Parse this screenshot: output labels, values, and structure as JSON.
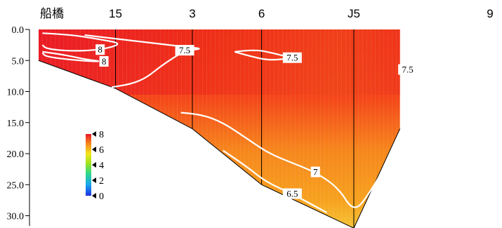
{
  "chart_data": {
    "type": "heatmap",
    "stations": [
      {
        "name": "船橋",
        "x": 0.0,
        "bottom_depth": 5.0
      },
      {
        "name": "15",
        "x": 1.0,
        "bottom_depth": 9.5
      },
      {
        "name": "3",
        "x": 2.0,
        "bottom_depth": 16.0
      },
      {
        "name": "6",
        "x": 2.9,
        "bottom_depth": 25.0
      },
      {
        "name": "J5",
        "x": 4.1,
        "bottom_depth": 32.0
      },
      {
        "name": "9",
        "x": 4.7,
        "bottom_depth": 16.0
      }
    ],
    "y_axis": {
      "ticks": [
        "0.0",
        "5.0",
        "10.0",
        "15.0",
        "20.0",
        "25.0",
        "30.0"
      ],
      "ylim": [
        0,
        32
      ]
    },
    "colorbar": {
      "labels": [
        "8",
        "6",
        "4",
        "2",
        "0"
      ],
      "range": [
        0,
        8
      ]
    },
    "contours": [
      {
        "label": "8",
        "points": [
          [
            0.05,
            0.6
          ],
          [
            0.4,
            0.8
          ],
          [
            0.8,
            1.6
          ],
          [
            1.1,
            2.3
          ],
          [
            0.8,
            3.3
          ],
          [
            0.4,
            3.5
          ],
          [
            0.1,
            3.1
          ],
          [
            0.05,
            2.5
          ]
        ]
      },
      {
        "label": "8",
        "points": [
          [
            0.05,
            3.6
          ],
          [
            0.3,
            4.0
          ],
          [
            0.6,
            4.8
          ],
          [
            0.85,
            5.2
          ],
          [
            0.5,
            5.0
          ],
          [
            0.1,
            4.4
          ],
          [
            0.05,
            3.8
          ]
        ]
      },
      {
        "label": "7.5",
        "points": [
          [
            0.6,
            0.9
          ],
          [
            1.0,
            1.5
          ],
          [
            1.5,
            2.2
          ],
          [
            1.9,
            2.8
          ],
          [
            2.15,
            3.1
          ],
          [
            1.9,
            3.4
          ],
          [
            1.6,
            5.8
          ],
          [
            1.4,
            7.8
          ],
          [
            1.2,
            8.8
          ],
          [
            0.95,
            9.3
          ]
        ]
      },
      {
        "label": "7.5",
        "points": [
          [
            2.55,
            3.6
          ],
          [
            2.8,
            3.2
          ],
          [
            3.05,
            3.8
          ],
          [
            3.3,
            4.6
          ],
          [
            3.0,
            5.0
          ],
          [
            2.75,
            4.3
          ],
          [
            2.55,
            3.6
          ]
        ]
      },
      {
        "label": "7.5",
        "points": [
          [
            4.75,
            2.8
          ],
          [
            4.95,
            2.4
          ],
          [
            4.95,
            7.4
          ],
          [
            4.8,
            6.5
          ],
          [
            4.7,
            5.3
          ],
          [
            4.75,
            2.8
          ]
        ]
      },
      {
        "label": "7",
        "points": [
          [
            1.85,
            13.4
          ],
          [
            2.1,
            13.6
          ],
          [
            2.4,
            15.0
          ],
          [
            2.7,
            17.5
          ],
          [
            3.0,
            20.0
          ],
          [
            3.3,
            21.5
          ],
          [
            3.6,
            23.0
          ],
          [
            3.9,
            25.5
          ],
          [
            4.1,
            29.5
          ],
          [
            4.3,
            26.5
          ],
          [
            4.6,
            20.0
          ],
          [
            4.98,
            15.5
          ]
        ]
      },
      {
        "label": "6.5",
        "points": [
          [
            2.4,
            19.5
          ],
          [
            2.7,
            22.0
          ],
          [
            2.95,
            24.5
          ],
          [
            3.3,
            26.5
          ],
          [
            3.6,
            28.5
          ],
          [
            3.75,
            29.5
          ]
        ]
      }
    ]
  }
}
